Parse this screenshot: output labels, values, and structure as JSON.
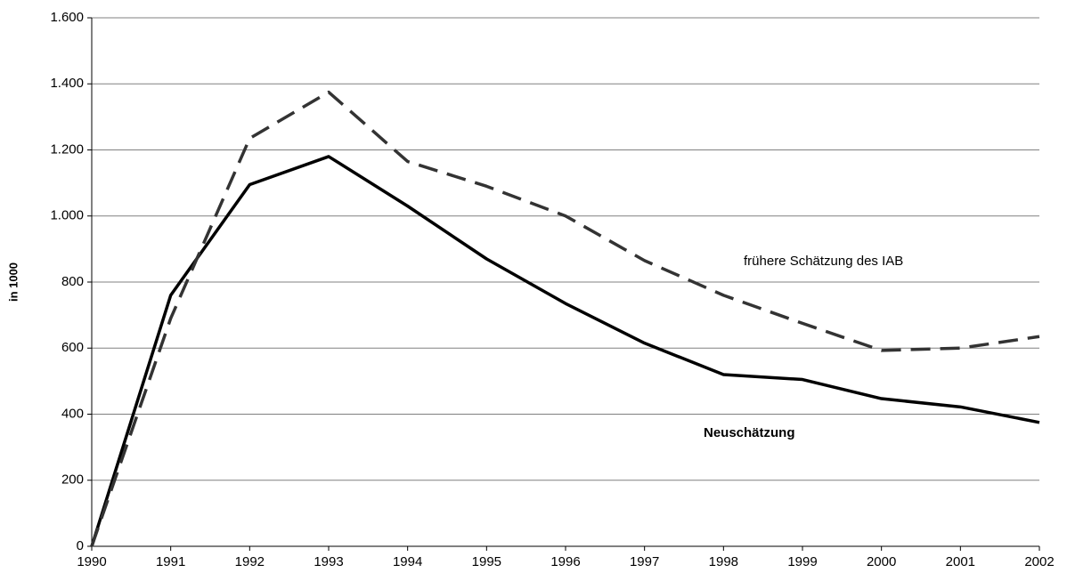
{
  "chart_data": {
    "type": "line",
    "y_label": "in 1000",
    "x": [
      1990,
      1991,
      1992,
      1993,
      1994,
      1995,
      1996,
      1997,
      1998,
      1999,
      2000,
      2001,
      2002
    ],
    "series": [
      {
        "name": "Neuschätzung",
        "color": "#000000",
        "dash": "solid",
        "values": [
          0,
          760,
          1095,
          1180,
          1030,
          870,
          735,
          615,
          520,
          505,
          447,
          422,
          375
        ]
      },
      {
        "name": "frühere Schätzung des IAB",
        "color": "#333333",
        "dash": "dashed",
        "values": [
          0,
          690,
          1235,
          1375,
          1165,
          1090,
          1000,
          865,
          760,
          675,
          593,
          600,
          635
        ]
      }
    ],
    "xlim": [
      1990,
      2002
    ],
    "xticks": [
      1990,
      1991,
      1992,
      1993,
      1994,
      1995,
      1996,
      1997,
      1998,
      1999,
      2000,
      2001,
      2002
    ],
    "ylim": [
      0,
      1600
    ],
    "yticks": [
      0,
      200,
      400,
      600,
      800,
      {
        "value": 1000,
        "label": "1.000"
      },
      {
        "value": 1200,
        "label": "1.200"
      },
      {
        "value": 1400,
        "label": "1.400"
      },
      {
        "value": 1600,
        "label": "1.600"
      }
    ],
    "grid": true
  }
}
